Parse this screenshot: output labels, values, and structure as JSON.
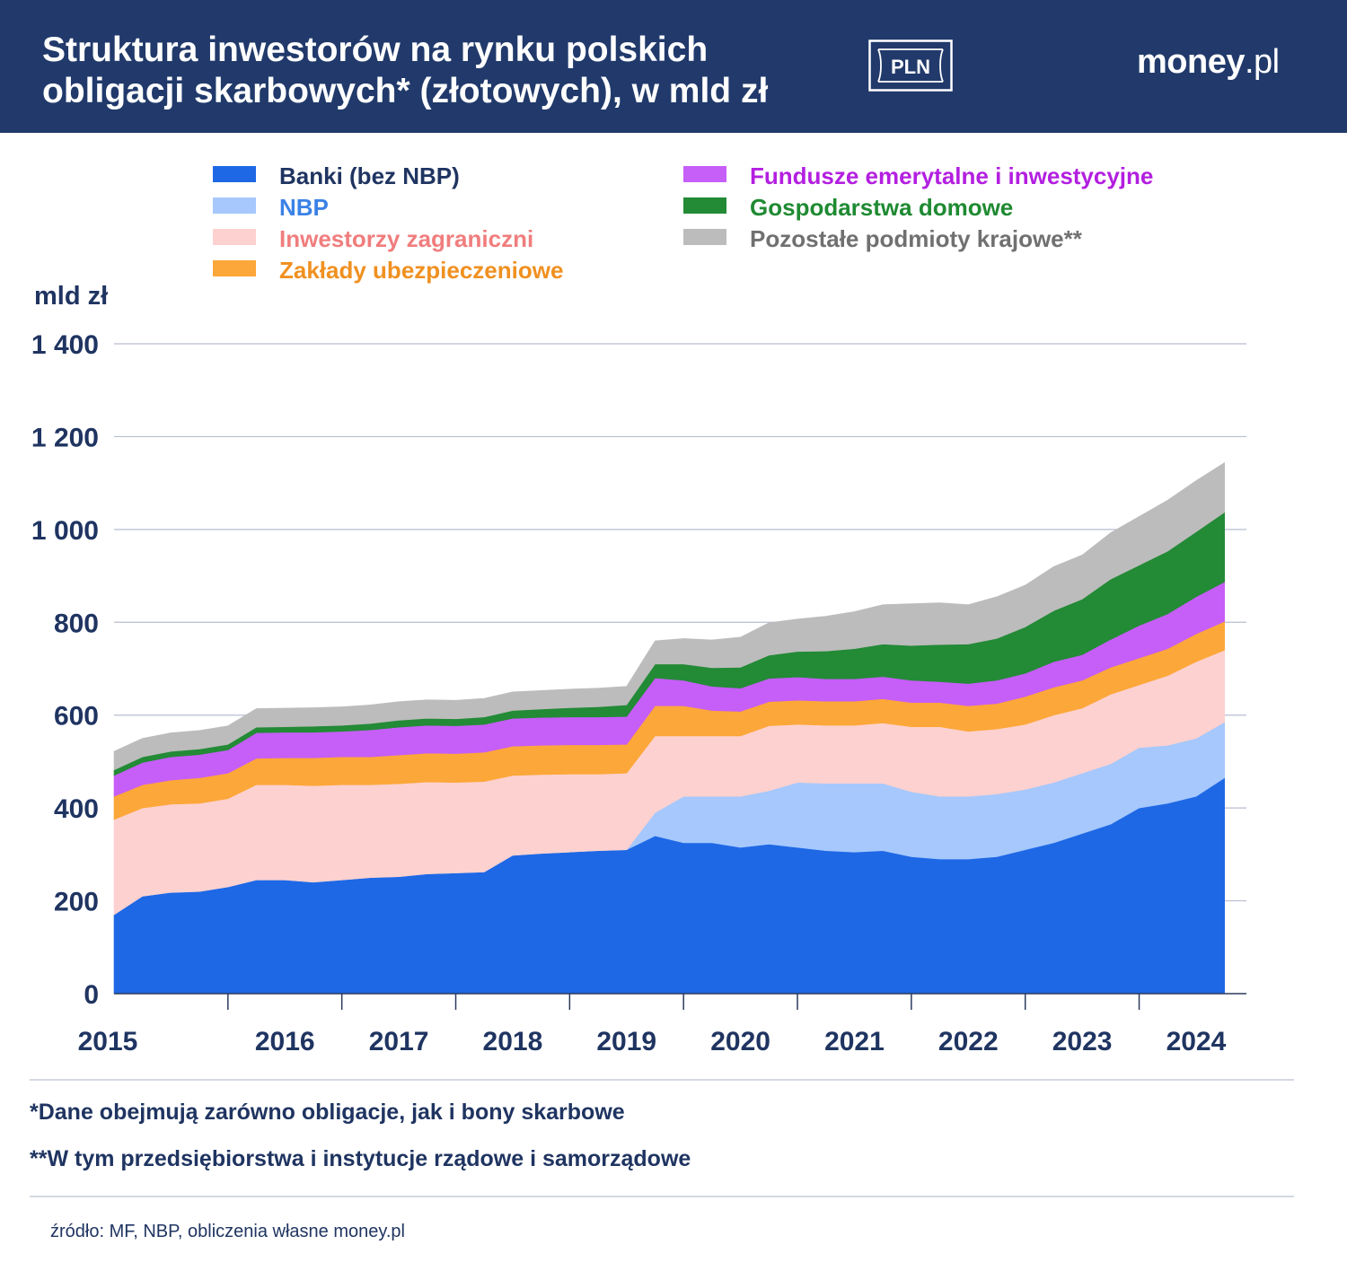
{
  "header": {
    "title_line1": "Struktura inwestorów na rynku polskich",
    "title_line2": "obligacji skarbowych* (złotowych), w mld zł",
    "badge": "PLN",
    "brand_main": "money",
    "brand_tld": ".pl"
  },
  "chart_data": {
    "type": "area",
    "stacked": true,
    "title": "Struktura inwestorów na rynku polskich obligacji skarbowych* (złotowych), w mld zł",
    "ylabel": "mld zł",
    "ylim": [
      0,
      1400
    ],
    "yticks": [
      0,
      200,
      400,
      600,
      800,
      1000,
      1200,
      1400
    ],
    "ytick_labels": [
      "0",
      "200",
      "400",
      "600",
      "800",
      "1 000",
      "1 200",
      "1 400"
    ],
    "xlim": [
      2015.0,
      2024.8
    ],
    "xtick_labels": [
      "2015",
      "2016",
      "2017",
      "2018",
      "2019",
      "2020",
      "2021",
      "2022",
      "2023",
      "2024"
    ],
    "grid": true,
    "x": [
      2015.0,
      2015.25,
      2015.5,
      2015.75,
      2016.0,
      2016.25,
      2016.5,
      2016.75,
      2017.0,
      2017.25,
      2017.5,
      2017.75,
      2018.0,
      2018.25,
      2018.5,
      2018.75,
      2019.0,
      2019.25,
      2019.5,
      2019.75,
      2020.0,
      2020.25,
      2020.5,
      2020.75,
      2021.0,
      2021.25,
      2021.5,
      2021.75,
      2022.0,
      2022.25,
      2022.5,
      2022.75,
      2023.0,
      2023.25,
      2023.5,
      2023.75,
      2024.0,
      2024.25,
      2024.5,
      2024.75
    ],
    "series": [
      {
        "name": "Banki (bez NBP)",
        "color": "#1e68e6",
        "values": [
          170,
          210,
          218,
          220,
          230,
          245,
          245,
          240,
          245,
          250,
          252,
          258,
          260,
          262,
          298,
          302,
          305,
          308,
          310,
          340,
          325,
          325,
          315,
          322,
          315,
          308,
          305,
          308,
          295,
          290,
          290,
          295,
          310,
          325,
          345,
          365,
          400,
          410,
          425,
          465
        ]
      },
      {
        "name": "NBP",
        "color": "#a6c8fc",
        "values": [
          0,
          0,
          0,
          0,
          0,
          0,
          0,
          0,
          0,
          0,
          0,
          0,
          0,
          0,
          0,
          0,
          0,
          0,
          0,
          50,
          100,
          100,
          110,
          115,
          140,
          145,
          148,
          145,
          140,
          135,
          135,
          135,
          130,
          130,
          130,
          130,
          130,
          125,
          125,
          120
        ]
      },
      {
        "name": "Inwestorzy zagraniczni",
        "color": "#fdd1cf",
        "values": [
          205,
          190,
          190,
          190,
          190,
          205,
          205,
          208,
          205,
          200,
          200,
          198,
          195,
          195,
          172,
          170,
          168,
          165,
          165,
          165,
          130,
          130,
          130,
          140,
          125,
          125,
          125,
          130,
          140,
          150,
          140,
          140,
          140,
          145,
          140,
          150,
          135,
          150,
          165,
          155
        ]
      },
      {
        "name": "Zakłady ubezpieczeniowe",
        "color": "#fca739",
        "values": [
          50,
          50,
          52,
          55,
          55,
          57,
          58,
          60,
          60,
          60,
          62,
          62,
          62,
          63,
          63,
          63,
          63,
          63,
          62,
          65,
          65,
          55,
          53,
          52,
          52,
          52,
          52,
          52,
          52,
          52,
          55,
          55,
          60,
          60,
          60,
          58,
          58,
          58,
          60,
          62
        ]
      },
      {
        "name": "Fundusze emerytalne i inwestycyjne",
        "color": "#c65ef8",
        "values": [
          45,
          48,
          50,
          50,
          50,
          55,
          55,
          55,
          55,
          58,
          60,
          60,
          60,
          60,
          60,
          60,
          60,
          60,
          60,
          60,
          55,
          52,
          50,
          50,
          50,
          48,
          48,
          48,
          48,
          45,
          48,
          50,
          50,
          55,
          55,
          60,
          70,
          75,
          80,
          85
        ]
      },
      {
        "name": "Gospodarstwa domowe",
        "color": "#238a36",
        "values": [
          12,
          12,
          12,
          12,
          12,
          12,
          12,
          13,
          13,
          14,
          15,
          15,
          15,
          16,
          17,
          18,
          20,
          22,
          25,
          30,
          35,
          40,
          45,
          50,
          55,
          60,
          65,
          70,
          75,
          80,
          85,
          90,
          100,
          110,
          120,
          130,
          130,
          135,
          140,
          150
        ]
      },
      {
        "name": "Pozostałe podmioty krajowe**",
        "color": "#bcbcbc",
        "values": [
          40,
          40,
          40,
          40,
          40,
          40,
          40,
          40,
          40,
          40,
          40,
          40,
          40,
          40,
          40,
          40,
          40,
          40,
          40,
          50,
          55,
          60,
          65,
          70,
          70,
          75,
          80,
          85,
          90,
          90,
          85,
          90,
          90,
          95,
          95,
          100,
          105,
          110,
          110,
          107
        ]
      }
    ]
  },
  "footnotes": {
    "note1": "*Dane obejmują zarówno obligacje, jak i bony skarbowe",
    "note2": "**W tym przedsiębiorstwa i instytucje rządowe i samorządowe",
    "source": "źródło: MF, NBP, obliczenia własne money.pl"
  }
}
